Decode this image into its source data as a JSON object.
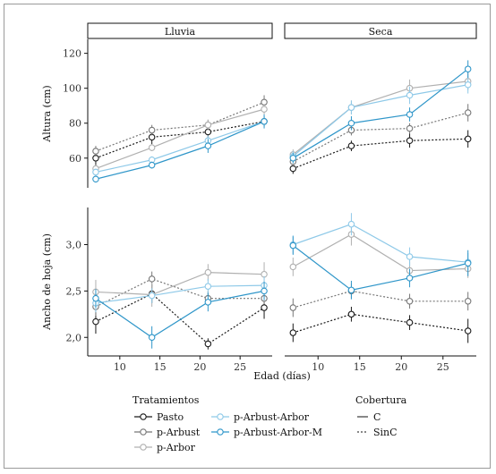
{
  "chart_data": {
    "type": "line",
    "x_label": "Edad (días)",
    "x_ticks": [
      10,
      15,
      20,
      25
    ],
    "xlim": [
      6,
      29
    ],
    "x": [
      7,
      14,
      21,
      28
    ],
    "facet_columns": [
      "Lluvia",
      "Seca"
    ],
    "legend": {
      "treatments_title": "Tratamientos",
      "treatments": [
        {
          "name": "Pasto",
          "color": "#1a1a1a"
        },
        {
          "name": "p-Arbust",
          "color": "#777777"
        },
        {
          "name": "p-Arbor",
          "color": "#b0b0b0"
        },
        {
          "name": "p-Arbust-Arbor",
          "color": "#8ec9e8"
        },
        {
          "name": "p-Arbust-Arbor-M",
          "color": "#2f96c9"
        }
      ],
      "cover_title": "Cobertura",
      "cover": [
        {
          "name": "C",
          "dash": "solid"
        },
        {
          "name": "SinC",
          "dash": "dotted"
        }
      ]
    },
    "rows": [
      {
        "id": "altura",
        "ylabel": "Altura (cm)",
        "ylim": [
          43,
          128
        ],
        "y_ticks": [
          60,
          80,
          100,
          120
        ],
        "panels": [
          {
            "series": [
              {
                "name": "Pasto",
                "cover": "SinC",
                "y": [
                  60,
                  72,
                  75,
                  81
                ],
                "err": [
                  4,
                  4,
                  4,
                  3
                ]
              },
              {
                "name": "p-Arbust",
                "cover": "SinC",
                "y": [
                  64,
                  76,
                  79,
                  92
                ],
                "err": [
                  3,
                  3,
                  3,
                  4
                ]
              },
              {
                "name": "p-Arbor",
                "cover": "C",
                "y": [
                  54,
                  66,
                  79,
                  88
                ],
                "err": [
                  2,
                  2,
                  3,
                  3
                ]
              },
              {
                "name": "p-Arbust-Arbor",
                "cover": "C",
                "y": [
                  52,
                  59,
                  70,
                  81
                ],
                "err": [
                  2,
                  2,
                  3,
                  3
                ]
              },
              {
                "name": "p-Arbust-Arbor-M",
                "cover": "C",
                "y": [
                  48,
                  56,
                  67,
                  81
                ],
                "err": [
                  2,
                  2,
                  4,
                  4
                ]
              }
            ]
          },
          {
            "series": [
              {
                "name": "Pasto",
                "cover": "SinC",
                "y": [
                  54,
                  67,
                  70,
                  71
                ],
                "err": [
                  3,
                  3,
                  4,
                  5
                ]
              },
              {
                "name": "p-Arbust",
                "cover": "SinC",
                "y": [
                  58,
                  76,
                  77,
                  86
                ],
                "err": [
                  3,
                  3,
                  3,
                  5
                ]
              },
              {
                "name": "p-Arbor",
                "cover": "C",
                "y": [
                  62,
                  89,
                  100,
                  104
                ],
                "err": [
                  3,
                  4,
                  5,
                  5
                ]
              },
              {
                "name": "p-Arbust-Arbor",
                "cover": "C",
                "y": [
                  61,
                  89,
                  96,
                  102
                ],
                "err": [
                  3,
                  4,
                  5,
                  5
                ]
              },
              {
                "name": "p-Arbust-Arbor-M",
                "cover": "C",
                "y": [
                  60,
                  80,
                  85,
                  111
                ],
                "err": [
                  3,
                  4,
                  4,
                  5
                ]
              }
            ]
          }
        ]
      },
      {
        "id": "ancho",
        "ylabel": "Ancho de hoja (cm)",
        "ylim": [
          1.8,
          3.4
        ],
        "y_ticks": [
          2.0,
          2.5,
          3.0
        ],
        "y_tick_labels": [
          "2,0",
          "2,5",
          "3,0"
        ],
        "panels": [
          {
            "series": [
              {
                "name": "Pasto",
                "cover": "SinC",
                "y": [
                  2.17,
                  2.47,
                  1.93,
                  2.32
                ],
                "err": [
                  0.13,
                  0.1,
                  0.06,
                  0.12
                ]
              },
              {
                "name": "p-Arbust",
                "cover": "SinC",
                "y": [
                  2.33,
                  2.63,
                  2.42,
                  2.42
                ],
                "err": [
                  0.1,
                  0.08,
                  0.08,
                  0.06
                ]
              },
              {
                "name": "p-Arbor",
                "cover": "C",
                "y": [
                  2.49,
                  2.46,
                  2.7,
                  2.68
                ],
                "err": [
                  0.13,
                  0.13,
                  0.09,
                  0.13
                ]
              },
              {
                "name": "p-Arbust-Arbor",
                "cover": "C",
                "y": [
                  2.37,
                  2.45,
                  2.55,
                  2.56
                ],
                "err": [
                  0.1,
                  0.08,
                  0.08,
                  0.1
                ]
              },
              {
                "name": "p-Arbust-Arbor-M",
                "cover": "C",
                "y": [
                  2.42,
                  2.0,
                  2.38,
                  2.5
                ],
                "err": [
                  0.1,
                  0.12,
                  0.1,
                  0.1
                ]
              }
            ]
          },
          {
            "series": [
              {
                "name": "Pasto",
                "cover": "SinC",
                "y": [
                  2.05,
                  2.25,
                  2.16,
                  2.07
                ],
                "err": [
                  0.1,
                  0.08,
                  0.08,
                  0.13
                ]
              },
              {
                "name": "p-Arbust",
                "cover": "SinC",
                "y": [
                  2.32,
                  2.5,
                  2.39,
                  2.39
                ],
                "err": [
                  0.1,
                  0.08,
                  0.08,
                  0.1
                ]
              },
              {
                "name": "p-Arbor",
                "cover": "C",
                "y": [
                  2.76,
                  3.11,
                  2.72,
                  2.74
                ],
                "err": [
                  0.1,
                  0.12,
                  0.1,
                  0.1
                ]
              },
              {
                "name": "p-Arbust-Arbor",
                "cover": "C",
                "y": [
                  3.0,
                  3.22,
                  2.87,
                  2.81
                ],
                "err": [
                  0.1,
                  0.12,
                  0.1,
                  0.1
                ]
              },
              {
                "name": "p-Arbust-Arbor-M",
                "cover": "C",
                "y": [
                  2.99,
                  2.51,
                  2.64,
                  2.8
                ],
                "err": [
                  0.1,
                  0.1,
                  0.1,
                  0.14
                ]
              }
            ]
          }
        ]
      }
    ]
  }
}
